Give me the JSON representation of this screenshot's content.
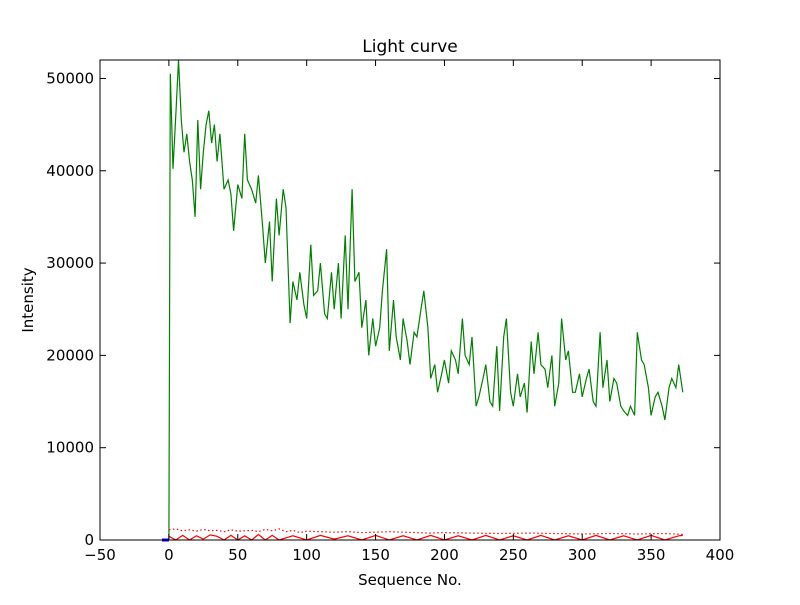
{
  "chart_data": {
    "type": "line",
    "title": "Light curve",
    "xlabel": "Sequence No.",
    "ylabel": "Intensity",
    "xlim": [
      -50,
      400
    ],
    "ylim": [
      0,
      52000
    ],
    "x_ticks": [
      -50,
      0,
      50,
      100,
      150,
      200,
      250,
      300,
      350,
      400
    ],
    "y_ticks": [
      0,
      10000,
      20000,
      30000,
      40000,
      50000
    ],
    "grid": false,
    "legend": "none",
    "series": [
      {
        "color": "#008000",
        "style": "solid",
        "x": [
          0,
          1,
          3,
          5,
          7,
          9,
          11,
          13,
          15,
          17,
          19,
          21,
          23,
          25,
          27,
          29,
          31,
          33,
          35,
          37,
          40,
          43,
          45,
          47,
          50,
          53,
          55,
          57,
          60,
          63,
          65,
          68,
          70,
          73,
          75,
          78,
          80,
          83,
          85,
          88,
          90,
          93,
          95,
          98,
          100,
          103,
          105,
          108,
          110,
          113,
          115,
          118,
          120,
          123,
          125,
          128,
          130,
          133,
          135,
          138,
          140,
          143,
          145,
          148,
          150,
          153,
          155,
          158,
          160,
          163,
          165,
          168,
          170,
          173,
          175,
          178,
          180,
          183,
          185,
          188,
          190,
          193,
          195,
          198,
          200,
          203,
          205,
          208,
          210,
          213,
          215,
          218,
          220,
          223,
          225,
          228,
          230,
          233,
          235,
          238,
          240,
          243,
          245,
          248,
          250,
          253,
          255,
          258,
          260,
          263,
          265,
          268,
          270,
          273,
          275,
          278,
          280,
          283,
          285,
          288,
          290,
          293,
          295,
          298,
          300,
          303,
          305,
          308,
          310,
          313,
          315,
          318,
          320,
          323,
          325,
          328,
          330,
          333,
          335,
          338,
          340,
          343,
          345,
          348,
          350,
          353,
          355,
          358,
          360,
          363,
          365,
          368,
          370,
          373
        ],
        "y": [
          0,
          50500,
          40200,
          46000,
          52000,
          45500,
          42000,
          44000,
          41000,
          39000,
          35000,
          45500,
          38000,
          42000,
          45000,
          46500,
          43000,
          45000,
          41000,
          44000,
          38000,
          39000,
          37500,
          33500,
          38500,
          37000,
          44000,
          39000,
          38000,
          36500,
          39500,
          34000,
          30000,
          34500,
          28000,
          37000,
          33000,
          38000,
          36000,
          23500,
          28000,
          26000,
          29000,
          25500,
          24000,
          32000,
          26500,
          27000,
          30000,
          24500,
          24000,
          29000,
          25000,
          30000,
          24000,
          33000,
          25000,
          38000,
          28000,
          29000,
          23000,
          26000,
          20000,
          24000,
          21000,
          23000,
          27000,
          31500,
          20500,
          26000,
          22000,
          19500,
          24000,
          21500,
          19000,
          22500,
          22000,
          25000,
          27000,
          23000,
          17500,
          19000,
          16000,
          18000,
          19500,
          17000,
          20500,
          19500,
          18000,
          24000,
          20000,
          19000,
          22000,
          14500,
          15500,
          17500,
          19000,
          15000,
          14500,
          21000,
          14000,
          22000,
          24000,
          16000,
          14500,
          18000,
          15500,
          17000,
          13800,
          21500,
          18000,
          22500,
          19000,
          18500,
          16500,
          20000,
          14500,
          17000,
          24000,
          19500,
          20500,
          16000,
          16000,
          18000,
          15500,
          17500,
          18500,
          15000,
          14500,
          22500,
          16500,
          19500,
          15000,
          17500,
          17000,
          14500,
          14000,
          13500,
          14500,
          13500,
          22500,
          19500,
          19000,
          16500,
          13500,
          15500,
          16000,
          14500,
          13000,
          16500,
          17500,
          16500,
          19000,
          16000
        ]
      },
      {
        "color": "#ff0000",
        "style": "dotted",
        "x": [
          0,
          5,
          10,
          15,
          20,
          25,
          30,
          35,
          40,
          45,
          50,
          55,
          60,
          65,
          70,
          75,
          80,
          85,
          90,
          95,
          100,
          110,
          120,
          130,
          140,
          150,
          160,
          170,
          180,
          190,
          200,
          220,
          240,
          260,
          280,
          300,
          320,
          340,
          360,
          373
        ],
        "y": [
          1100,
          1200,
          1000,
          1100,
          950,
          1150,
          1000,
          1050,
          900,
          1100,
          950,
          1000,
          1050,
          900,
          1150,
          1000,
          1200,
          900,
          1050,
          800,
          950,
          900,
          850,
          900,
          800,
          850,
          900,
          850,
          800,
          750,
          800,
          750,
          700,
          750,
          700,
          650,
          700,
          650,
          700,
          600
        ]
      },
      {
        "color": "#ff0000",
        "style": "solid",
        "x": [
          0,
          5,
          10,
          15,
          20,
          25,
          30,
          35,
          40,
          45,
          50,
          55,
          60,
          65,
          70,
          75,
          80,
          90,
          100,
          110,
          120,
          130,
          140,
          150,
          160,
          170,
          180,
          190,
          200,
          210,
          220,
          230,
          240,
          250,
          260,
          270,
          280,
          290,
          300,
          310,
          320,
          330,
          340,
          350,
          360,
          370,
          373
        ],
        "y": [
          400,
          0,
          500,
          0,
          450,
          100,
          550,
          400,
          0,
          500,
          0,
          450,
          0,
          600,
          0,
          500,
          0,
          450,
          0,
          500,
          100,
          450,
          0,
          500,
          0,
          450,
          0,
          500,
          0,
          450,
          0,
          500,
          0,
          450,
          0,
          500,
          0,
          450,
          0,
          500,
          0,
          450,
          0,
          500,
          0,
          450,
          500
        ]
      },
      {
        "color": "#0000ff",
        "style": "solid",
        "x": [
          -5,
          0
        ],
        "y": [
          0,
          0
        ]
      }
    ]
  }
}
